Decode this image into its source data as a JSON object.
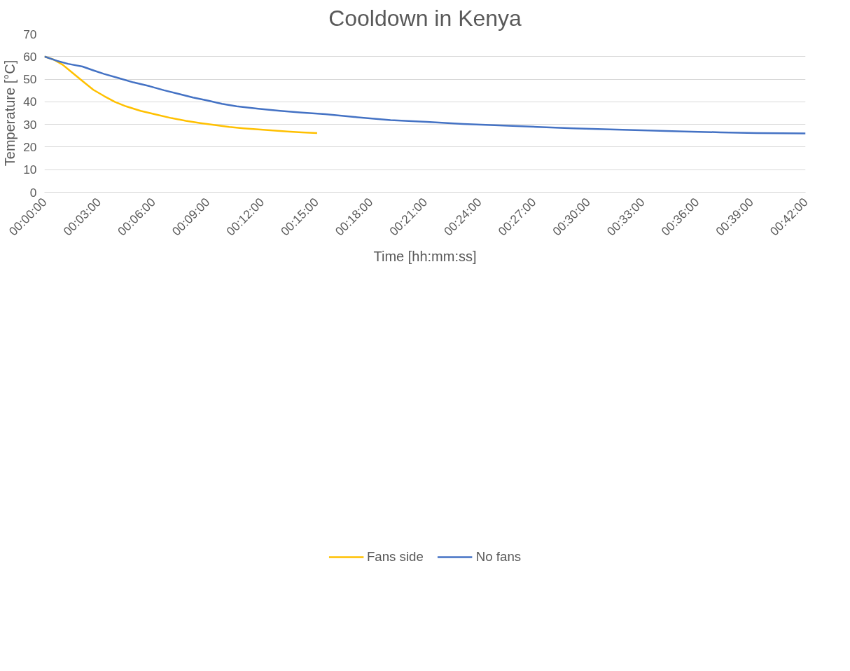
{
  "chart_data": {
    "type": "line",
    "title": "Cooldown in Kenya",
    "xlabel": "Time [hh:mm:ss]",
    "ylabel": "Temperature [°C]",
    "series": [
      {
        "name": "Fans side",
        "color": "#ffc000",
        "x": [
          0,
          0.0083,
          0.0167,
          0.025,
          0.035,
          0.045,
          0.055,
          0.065,
          0.075,
          0.0883,
          0.1033,
          0.1167,
          0.13,
          0.1433,
          0.1567,
          0.17,
          0.1833,
          0.1967,
          0.21,
          0.2233,
          0.2367,
          0.2508
        ],
        "values": [
          60,
          58.7,
          56.4,
          53.1,
          49.2,
          45.3,
          42.5,
          39.9,
          38.0,
          36.0,
          34.3,
          32.8,
          31.6,
          30.6,
          29.7,
          28.9,
          28.3,
          27.8,
          27.3,
          26.9,
          26.5,
          26.2
        ]
      },
      {
        "name": "No fans",
        "color": "#4472c4",
        "x": [
          0,
          0.0117,
          0.0217,
          0.035,
          0.045,
          0.055,
          0.0683,
          0.0817,
          0.0967,
          0.11,
          0.1233,
          0.1367,
          0.15,
          0.1633,
          0.1767,
          0.1967,
          0.2167,
          0.2367,
          0.2583,
          0.285,
          0.3183,
          0.3517,
          0.385,
          0.4183,
          0.4533,
          0.4867,
          0.52,
          0.555,
          0.5883,
          0.6217,
          0.655,
          0.7
        ],
        "values": [
          60,
          58.1,
          56.8,
          55.6,
          53.9,
          52.3,
          50.5,
          48.6,
          46.9,
          45.1,
          43.5,
          41.9,
          40.6,
          39.1,
          38.0,
          36.9,
          36.0,
          35.2,
          34.5,
          33.3,
          31.9,
          31.1,
          30.2,
          29.6,
          28.9,
          28.3,
          27.8,
          27.3,
          26.9,
          26.5,
          26.2,
          26.0
        ]
      }
    ],
    "xlim": [
      0,
      0.7
    ],
    "xticks": [
      {
        "value": 0,
        "label": "00:00:00"
      },
      {
        "value": 0.05,
        "label": "00:03:00"
      },
      {
        "value": 0.1,
        "label": "00:06:00"
      },
      {
        "value": 0.15,
        "label": "00:09:00"
      },
      {
        "value": 0.2,
        "label": "00:12:00"
      },
      {
        "value": 0.25,
        "label": "00:15:00"
      },
      {
        "value": 0.3,
        "label": "00:18:00"
      },
      {
        "value": 0.35,
        "label": "00:21:00"
      },
      {
        "value": 0.4,
        "label": "00:24:00"
      },
      {
        "value": 0.45,
        "label": "00:27:00"
      },
      {
        "value": 0.5,
        "label": "00:30:00"
      },
      {
        "value": 0.55,
        "label": "00:33:00"
      },
      {
        "value": 0.6,
        "label": "00:36:00"
      },
      {
        "value": 0.65,
        "label": "00:39:00"
      },
      {
        "value": 0.7,
        "label": "00:42:00"
      }
    ],
    "ylim": [
      0,
      70
    ],
    "yticks": [
      0,
      10,
      20,
      30,
      40,
      50,
      60,
      70
    ],
    "grid": "y",
    "legend": "bottom",
    "marker": "none",
    "line_style": "solid"
  }
}
